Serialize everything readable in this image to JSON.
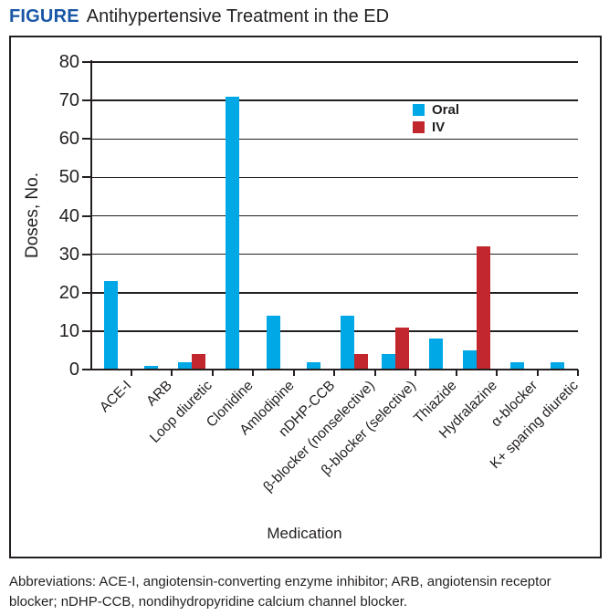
{
  "figure": {
    "label": "FIGURE",
    "title": "Antihypertensive Treatment in the ED",
    "label_color": "#1957A6"
  },
  "chart_data": {
    "type": "bar",
    "title": "Antihypertensive Treatment in the ED",
    "xlabel": "Medication",
    "ylabel": "Doses, No.",
    "ylim": [
      0,
      80
    ],
    "ytick_step": 10,
    "grid": true,
    "legend_position": "upper-right-inside",
    "axis_color": "#231F20",
    "categories": [
      "ACE-I",
      "ARB",
      "Loop diuretic",
      "Clonidine",
      "Amlodipine",
      "nDHP-CCB",
      "β-blocker (nonselective)",
      "β-blocker (selective)",
      "Thiazide",
      "Hydralazine",
      "α-blocker",
      "K+ sparing diuretic"
    ],
    "series": [
      {
        "name": "Oral",
        "color": "#00A9E6",
        "values": [
          23,
          1,
          2,
          71,
          14,
          2,
          14,
          4,
          8,
          5,
          2,
          2
        ]
      },
      {
        "name": "IV",
        "color": "#C1272D",
        "values": [
          0,
          0,
          4,
          0,
          0,
          0,
          4,
          11,
          0,
          32,
          0,
          0
        ]
      }
    ]
  },
  "footer": {
    "abbreviations": "Abbreviations: ACE-I, angiotensin-converting enzyme inhibitor; ARB, angiotensin receptor blocker; nDHP-CCB, nondihydropyridine calcium channel blocker."
  }
}
